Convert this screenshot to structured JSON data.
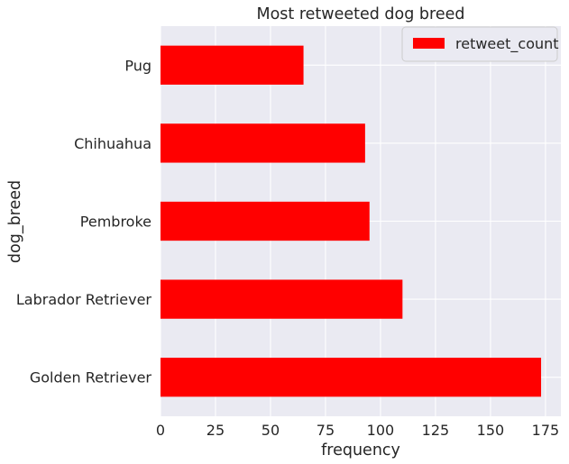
{
  "chart_data": {
    "type": "bar",
    "orientation": "horizontal",
    "title": "Most retweeted dog breed",
    "xlabel": "frequency",
    "ylabel": "dog_breed",
    "categories": [
      "Golden Retriever",
      "Labrador Retriever",
      "Pembroke",
      "Chihuahua",
      "Pug"
    ],
    "series": [
      {
        "name": "retweet_count",
        "values": [
          173,
          110,
          95,
          93,
          65
        ]
      }
    ],
    "xlim": [
      0,
      182
    ],
    "xticks": [
      0,
      25,
      50,
      75,
      100,
      125,
      150,
      175
    ],
    "grid": true,
    "legend_position": "top-right",
    "colors": {
      "bar": "#ff0000",
      "background": "#eaeaf2",
      "grid": "#ffffff",
      "text": "#262626"
    }
  }
}
